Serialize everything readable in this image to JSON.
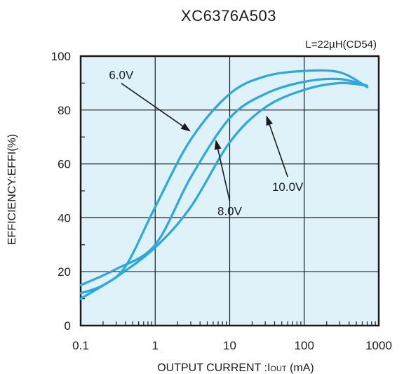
{
  "chart_data": {
    "type": "line",
    "title": "XC6376A503",
    "condition": "L=22µH(CD54)",
    "xlabel": "OUTPUT CURRENT :I",
    "xlabel_sub": "OUT",
    "xlabel_unit": " (mA)",
    "ylabel": "EFFICIENCY:EFFI(%)",
    "x_scale": "log",
    "xlim": [
      0.1,
      1000
    ],
    "ylim": [
      0,
      100
    ],
    "x_ticks": [
      0.1,
      1,
      10,
      100,
      1000
    ],
    "x_tick_labels": [
      "0.1",
      "1",
      "10",
      "100",
      "1000"
    ],
    "y_ticks": [
      0,
      20,
      40,
      60,
      80,
      100
    ],
    "y_tick_labels": [
      "0",
      "20",
      "40",
      "60",
      "80",
      "100"
    ],
    "grid": true,
    "series": [
      {
        "name": "6.0V",
        "x": [
          0.1,
          0.2,
          0.4,
          1,
          3,
          10,
          30,
          100,
          300,
          700
        ],
        "y": [
          12,
          15,
          22,
          44,
          69,
          86,
          92.5,
          94.5,
          94,
          88.5
        ]
      },
      {
        "name": "8.0V",
        "x": [
          0.1,
          0.3,
          1,
          3,
          10,
          30,
          100,
          300,
          700
        ],
        "y": [
          15,
          21,
          30,
          55,
          77,
          86,
          90.5,
          91.5,
          89
        ]
      },
      {
        "name": "10.0V",
        "x": [
          0.1,
          0.3,
          1,
          3,
          10,
          30,
          100,
          300,
          700
        ],
        "y": [
          10,
          18,
          29,
          44,
          68,
          81,
          87.5,
          90,
          89
        ]
      }
    ],
    "annotations": [
      {
        "text": "6.0V",
        "series": "6.0V",
        "label_x": 0.35,
        "label_y": 91.5,
        "point_x": 3,
        "point_y": 72
      },
      {
        "text": "8.0V",
        "series": "8.0V",
        "label_x": 10,
        "label_y": 41,
        "point_x": 6.5,
        "point_y": 69
      },
      {
        "text": "10.0V",
        "series": "10.0V",
        "label_x": 60,
        "label_y": 50,
        "point_x": 31,
        "point_y": 78
      }
    ]
  }
}
